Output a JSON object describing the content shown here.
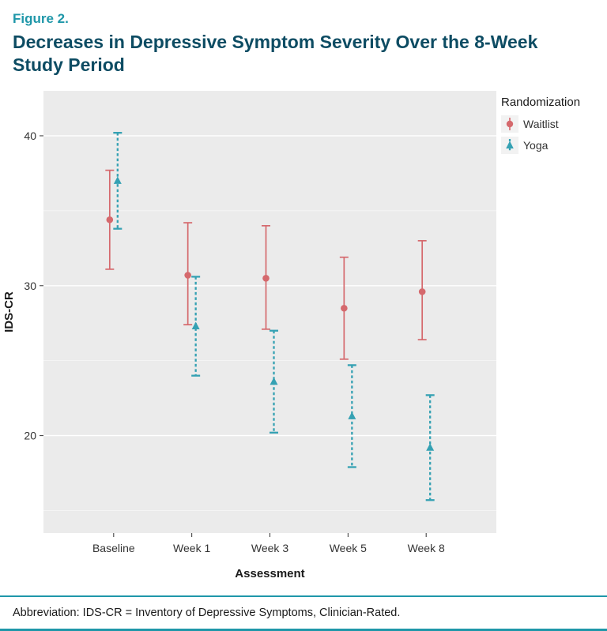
{
  "figure": {
    "label": "Figure 2.",
    "title": "Decreases in Depressive Symptom Severity Over the 8-Week Study Period",
    "footnote": "Abbreviation: IDS-CR = Inventory of Depressive Symptoms, Clinician-Rated."
  },
  "colors": {
    "accent_teal": "#1f97a9",
    "title_text": "#0d4c63",
    "waitlist": "#d5696d",
    "yoga": "#35a1b3",
    "panel_bg": "#ebebeb"
  },
  "chart_data": {
    "type": "errorbar",
    "title": "Decreases in Depressive Symptom Severity Over the 8-Week Study Period",
    "categories": [
      "Baseline",
      "Week 1",
      "Week 3",
      "Week 5",
      "Week 8"
    ],
    "series": [
      {
        "name": "Waitlist",
        "marker": "circle",
        "line": "solid",
        "color": "#d5696d",
        "values": [
          34.4,
          30.7,
          30.5,
          28.5,
          29.6
        ],
        "ci_low": [
          31.1,
          27.4,
          27.1,
          25.1,
          26.4
        ],
        "ci_high": [
          37.7,
          34.2,
          34.0,
          31.9,
          33.0
        ]
      },
      {
        "name": "Yoga",
        "marker": "triangle",
        "line": "dashed",
        "color": "#35a1b3",
        "values": [
          37.0,
          27.3,
          23.6,
          21.3,
          19.2
        ],
        "ci_low": [
          33.8,
          24.0,
          20.2,
          17.9,
          15.7
        ],
        "ci_high": [
          40.2,
          30.6,
          27.0,
          24.7,
          22.7
        ]
      }
    ],
    "xlabel": "Assessment",
    "ylabel": "IDS-CR",
    "ylim": [
      13.5,
      43
    ],
    "yticks": [
      20,
      30,
      40
    ],
    "yticks_minor": [
      15,
      25,
      35
    ],
    "panel_bg": "#ebebeb",
    "grid": true,
    "legend_title": "Randomization",
    "legend_position": "right"
  }
}
